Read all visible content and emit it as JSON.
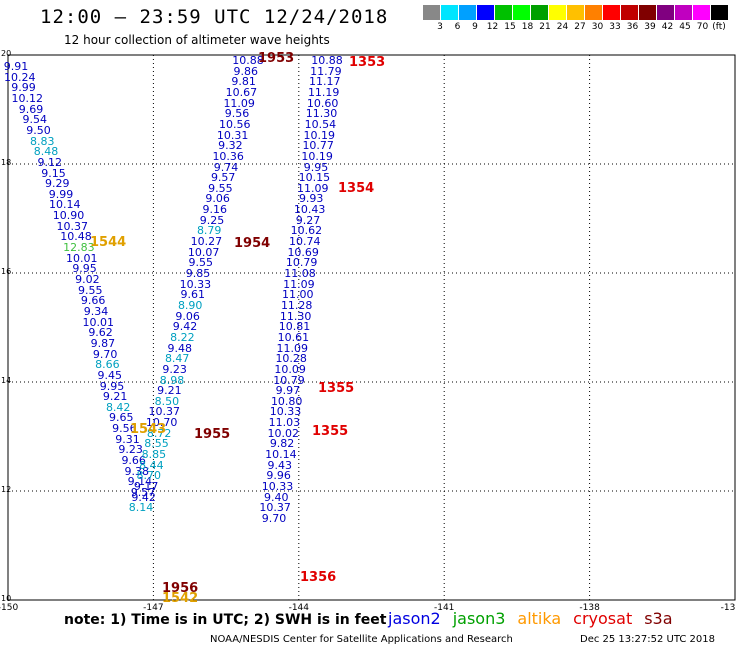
{
  "header": {
    "title": "12:00 – 23:59 UTC 12/24/2018",
    "subtitle": "12 hour collection of altimeter wave heights"
  },
  "legend": {
    "colors": [
      "#888888",
      "#00e5ff",
      "#00a0ff",
      "#0000ff",
      "#00c000",
      "#00ff00",
      "#00a000",
      "#ffff00",
      "#ffc000",
      "#ff8000",
      "#ff0000",
      "#c00000",
      "#800000",
      "#800080",
      "#c000c0",
      "#ff00ff",
      "#000000"
    ],
    "labels": [
      "3",
      "6",
      "9",
      "12",
      "15",
      "18",
      "21",
      "24",
      "27",
      "30",
      "33",
      "36",
      "39",
      "42",
      "45",
      "70"
    ],
    "unit": "(ft)"
  },
  "axes": {
    "lat_labels": [
      "20",
      "18",
      "16",
      "14",
      "12",
      "10"
    ],
    "lon_labels": [
      "-150",
      "-147",
      "-144",
      "-141",
      "-138",
      "-13"
    ]
  },
  "chart_data": {
    "type": "scatter",
    "title": "12:00 – 23:59 UTC 12/24/2018",
    "subtitle": "12 hour collection of altimeter wave heights",
    "xlim": [
      -150,
      -135
    ],
    "ylim": [
      10,
      20
    ],
    "grid": true,
    "units": "ft",
    "series": [
      {
        "name": "track 1544 / 1543",
        "times": [
          {
            "label": "1544",
            "color": "#e0a000"
          },
          {
            "label": "1543",
            "color": "#e0a000"
          }
        ],
        "values": [
          {
            "v": "9.91",
            "c": "#0000c0"
          },
          {
            "v": "10.24",
            "c": "#0000c0"
          },
          {
            "v": "9.99",
            "c": "#0000c0"
          },
          {
            "v": "10.12",
            "c": "#0000c0"
          },
          {
            "v": "9.69",
            "c": "#0000c0"
          },
          {
            "v": "9.54",
            "c": "#0000c0"
          },
          {
            "v": "9.50",
            "c": "#0000c0"
          },
          {
            "v": "8.83",
            "c": "#00a0c0"
          },
          {
            "v": "8.48",
            "c": "#00a0c0"
          },
          {
            "v": "9.12",
            "c": "#0000c0"
          },
          {
            "v": "9.15",
            "c": "#0000c0"
          },
          {
            "v": "9.29",
            "c": "#0000c0"
          },
          {
            "v": "9.99",
            "c": "#0000c0"
          },
          {
            "v": "10.14",
            "c": "#0000c0"
          },
          {
            "v": "10.90",
            "c": "#0000c0"
          },
          {
            "v": "10.37",
            "c": "#0000c0"
          },
          {
            "v": "10.48",
            "c": "#0000c0"
          },
          {
            "v": "12.83",
            "c": "#40c040"
          },
          {
            "v": "10.01",
            "c": "#0000c0"
          },
          {
            "v": "9.95",
            "c": "#0000c0"
          },
          {
            "v": "9.02",
            "c": "#0000c0"
          },
          {
            "v": "9.55",
            "c": "#0000c0"
          },
          {
            "v": "9.66",
            "c": "#0000c0"
          },
          {
            "v": "9.34",
            "c": "#0000c0"
          },
          {
            "v": "10.01",
            "c": "#0000c0"
          },
          {
            "v": "9.62",
            "c": "#0000c0"
          },
          {
            "v": "9.87",
            "c": "#0000c0"
          },
          {
            "v": "9.70",
            "c": "#0000c0"
          },
          {
            "v": "8.66",
            "c": "#00a0c0"
          },
          {
            "v": "9.45",
            "c": "#0000c0"
          },
          {
            "v": "9.95",
            "c": "#0000c0"
          },
          {
            "v": "9.21",
            "c": "#0000c0"
          },
          {
            "v": "8.42",
            "c": "#00a0c0"
          },
          {
            "v": "9.65",
            "c": "#0000c0"
          },
          {
            "v": "9.56",
            "c": "#0000c0"
          },
          {
            "v": "9.31",
            "c": "#0000c0"
          },
          {
            "v": "9.23",
            "c": "#0000c0"
          },
          {
            "v": "9.66",
            "c": "#0000c0"
          },
          {
            "v": "9.38",
            "c": "#0000c0"
          },
          {
            "v": "9.14",
            "c": "#0000c0"
          },
          {
            "v": "9.57",
            "c": "#0000c0"
          }
        ]
      },
      {
        "name": "track 1954 / 1955",
        "times": [
          {
            "label": "1953",
            "color": "#800000"
          },
          {
            "label": "1954",
            "color": "#800000"
          },
          {
            "label": "1955",
            "color": "#800000"
          },
          {
            "label": "1956",
            "color": "#800000"
          },
          {
            "label": "1542",
            "color": "#e0a000"
          }
        ],
        "values": [
          {
            "v": "10.88",
            "c": "#0000c0"
          },
          {
            "v": "9.86",
            "c": "#0000c0"
          },
          {
            "v": "9.81",
            "c": "#0000c0"
          },
          {
            "v": "10.67",
            "c": "#0000c0"
          },
          {
            "v": "11.09",
            "c": "#0000c0"
          },
          {
            "v": "9.56",
            "c": "#0000c0"
          },
          {
            "v": "10.56",
            "c": "#0000c0"
          },
          {
            "v": "10.31",
            "c": "#0000c0"
          },
          {
            "v": "9.32",
            "c": "#0000c0"
          },
          {
            "v": "10.36",
            "c": "#0000c0"
          },
          {
            "v": "9.74",
            "c": "#0000c0"
          },
          {
            "v": "9.57",
            "c": "#0000c0"
          },
          {
            "v": "9.55",
            "c": "#0000c0"
          },
          {
            "v": "9.06",
            "c": "#0000c0"
          },
          {
            "v": "9.16",
            "c": "#0000c0"
          },
          {
            "v": "9.25",
            "c": "#0000c0"
          },
          {
            "v": "8.79",
            "c": "#00a0c0"
          },
          {
            "v": "10.27",
            "c": "#0000c0"
          },
          {
            "v": "10.07",
            "c": "#0000c0"
          },
          {
            "v": "9.55",
            "c": "#0000c0"
          },
          {
            "v": "9.85",
            "c": "#0000c0"
          },
          {
            "v": "10.33",
            "c": "#0000c0"
          },
          {
            "v": "9.61",
            "c": "#0000c0"
          },
          {
            "v": "8.90",
            "c": "#00a0c0"
          },
          {
            "v": "9.06",
            "c": "#0000c0"
          },
          {
            "v": "9.42",
            "c": "#0000c0"
          },
          {
            "v": "8.22",
            "c": "#00a0c0"
          },
          {
            "v": "9.48",
            "c": "#0000c0"
          },
          {
            "v": "8.47",
            "c": "#00a0c0"
          },
          {
            "v": "9.23",
            "c": "#0000c0"
          },
          {
            "v": "8.98",
            "c": "#00a0c0"
          },
          {
            "v": "9.21",
            "c": "#0000c0"
          },
          {
            "v": "8.50",
            "c": "#00a0c0"
          },
          {
            "v": "10.37",
            "c": "#0000c0"
          },
          {
            "v": "10.70",
            "c": "#0000c0"
          },
          {
            "v": "8.72",
            "c": "#00a0c0"
          },
          {
            "v": "8.55",
            "c": "#00a0c0"
          },
          {
            "v": "8.85",
            "c": "#00a0c0"
          },
          {
            "v": "8.44",
            "c": "#00a0c0"
          },
          {
            "v": "8.70",
            "c": "#00a0c0"
          },
          {
            "v": "9.17",
            "c": "#0000c0"
          },
          {
            "v": "9.42",
            "c": "#0000c0"
          },
          {
            "v": "8.14",
            "c": "#00a0c0"
          }
        ]
      },
      {
        "name": "track 1353–1356",
        "times": [
          {
            "label": "1353",
            "color": "#e00000"
          },
          {
            "label": "1354",
            "color": "#e00000"
          },
          {
            "label": "1355",
            "color": "#e00000"
          },
          {
            "label": "1355",
            "color": "#e00000"
          },
          {
            "label": "1356",
            "color": "#e00000"
          }
        ],
        "values": [
          {
            "v": "10.88",
            "c": "#0000c0"
          },
          {
            "v": "11.79",
            "c": "#0000c0"
          },
          {
            "v": "11.17",
            "c": "#0000c0"
          },
          {
            "v": "11.19",
            "c": "#0000c0"
          },
          {
            "v": "10.60",
            "c": "#0000c0"
          },
          {
            "v": "11.30",
            "c": "#0000c0"
          },
          {
            "v": "10.54",
            "c": "#0000c0"
          },
          {
            "v": "10.19",
            "c": "#0000c0"
          },
          {
            "v": "10.77",
            "c": "#0000c0"
          },
          {
            "v": "10.19",
            "c": "#0000c0"
          },
          {
            "v": "9.95",
            "c": "#0000c0"
          },
          {
            "v": "10.15",
            "c": "#0000c0"
          },
          {
            "v": "11.09",
            "c": "#0000c0"
          },
          {
            "v": "9.93",
            "c": "#0000c0"
          },
          {
            "v": "10.43",
            "c": "#0000c0"
          },
          {
            "v": "9.27",
            "c": "#0000c0"
          },
          {
            "v": "10.62",
            "c": "#0000c0"
          },
          {
            "v": "10.74",
            "c": "#0000c0"
          },
          {
            "v": "10.69",
            "c": "#0000c0"
          },
          {
            "v": "10.79",
            "c": "#0000c0"
          },
          {
            "v": "11.08",
            "c": "#0000c0"
          },
          {
            "v": "11.09",
            "c": "#0000c0"
          },
          {
            "v": "11.00",
            "c": "#0000c0"
          },
          {
            "v": "11.28",
            "c": "#0000c0"
          },
          {
            "v": "11.30",
            "c": "#0000c0"
          },
          {
            "v": "10.81",
            "c": "#0000c0"
          },
          {
            "v": "10.61",
            "c": "#0000c0"
          },
          {
            "v": "11.09",
            "c": "#0000c0"
          },
          {
            "v": "10.28",
            "c": "#0000c0"
          },
          {
            "v": "10.09",
            "c": "#0000c0"
          },
          {
            "v": "10.79",
            "c": "#0000c0"
          },
          {
            "v": "9.97",
            "c": "#0000c0"
          },
          {
            "v": "10.80",
            "c": "#0000c0"
          },
          {
            "v": "10.33",
            "c": "#0000c0"
          },
          {
            "v": "11.03",
            "c": "#0000c0"
          },
          {
            "v": "10.02",
            "c": "#0000c0"
          },
          {
            "v": "9.82",
            "c": "#0000c0"
          },
          {
            "v": "10.14",
            "c": "#0000c0"
          },
          {
            "v": "9.43",
            "c": "#0000c0"
          },
          {
            "v": "9.96",
            "c": "#0000c0"
          },
          {
            "v": "10.33",
            "c": "#0000c0"
          },
          {
            "v": "9.40",
            "c": "#0000c0"
          },
          {
            "v": "10.37",
            "c": "#0000c0"
          },
          {
            "v": "9.70",
            "c": "#0000c0"
          }
        ]
      }
    ]
  },
  "footer": {
    "note": "note: 1) Time is in UTC; 2) SWH is in feet",
    "satellites": [
      {
        "label": "jason2",
        "color": "#0000e0"
      },
      {
        "label": "jason3",
        "color": "#00a000"
      },
      {
        "label": "altika",
        "color": "#ff9900"
      },
      {
        "label": "cryosat",
        "color": "#e00000"
      },
      {
        "label": "s3a",
        "color": "#800000"
      }
    ],
    "credit": "NOAA/NESDIS Center for Satellite Applications and Research",
    "timestamp": "Dec 25 13:27:52 UTC 2018"
  }
}
